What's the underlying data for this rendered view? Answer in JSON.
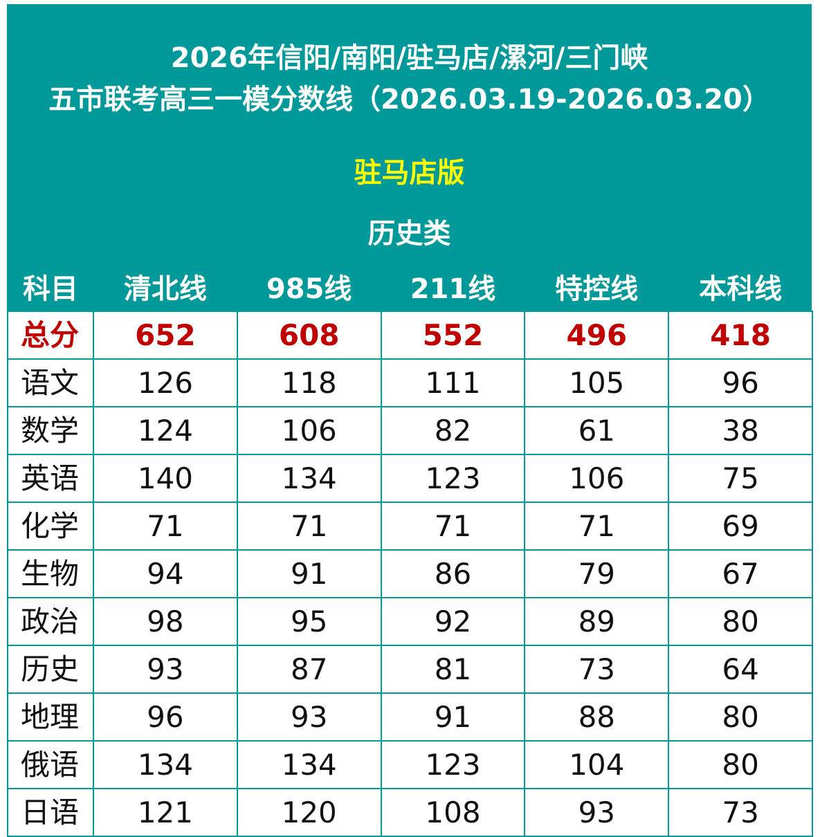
{
  "header": {
    "title_line1": "2026年信阳/南阳/驻马店/漯河/三门峡",
    "title_line2": "五市联考高三一模分数线（2026.03.19-2026.03.20）",
    "edition": "驻马店版",
    "category": "历史类"
  },
  "colors": {
    "banner": "#009999",
    "edition_text": "#ffff00",
    "total_text": "#c00000",
    "grid_border": "#009999"
  },
  "table": {
    "columns": [
      "科目",
      "清北线",
      "985线",
      "211线",
      "特控线",
      "本科线"
    ],
    "total_row": {
      "label": "总分",
      "values": [
        "652",
        "608",
        "552",
        "496",
        "418"
      ]
    },
    "rows": [
      {
        "subject": "语文",
        "values": [
          "126",
          "118",
          "111",
          "105",
          "96"
        ]
      },
      {
        "subject": "数学",
        "values": [
          "124",
          "106",
          "82",
          "61",
          "38"
        ]
      },
      {
        "subject": "英语",
        "values": [
          "140",
          "134",
          "123",
          "106",
          "75"
        ]
      },
      {
        "subject": "化学",
        "values": [
          "71",
          "71",
          "71",
          "71",
          "69"
        ]
      },
      {
        "subject": "生物",
        "values": [
          "94",
          "91",
          "86",
          "79",
          "67"
        ]
      },
      {
        "subject": "政治",
        "values": [
          "98",
          "95",
          "92",
          "89",
          "80"
        ]
      },
      {
        "subject": "历史",
        "values": [
          "93",
          "87",
          "81",
          "73",
          "64"
        ]
      },
      {
        "subject": "地理",
        "values": [
          "96",
          "93",
          "91",
          "88",
          "80"
        ]
      },
      {
        "subject": "俄语",
        "values": [
          "134",
          "134",
          "123",
          "104",
          "80"
        ]
      },
      {
        "subject": "日语",
        "values": [
          "121",
          "120",
          "108",
          "93",
          "73"
        ]
      }
    ]
  }
}
